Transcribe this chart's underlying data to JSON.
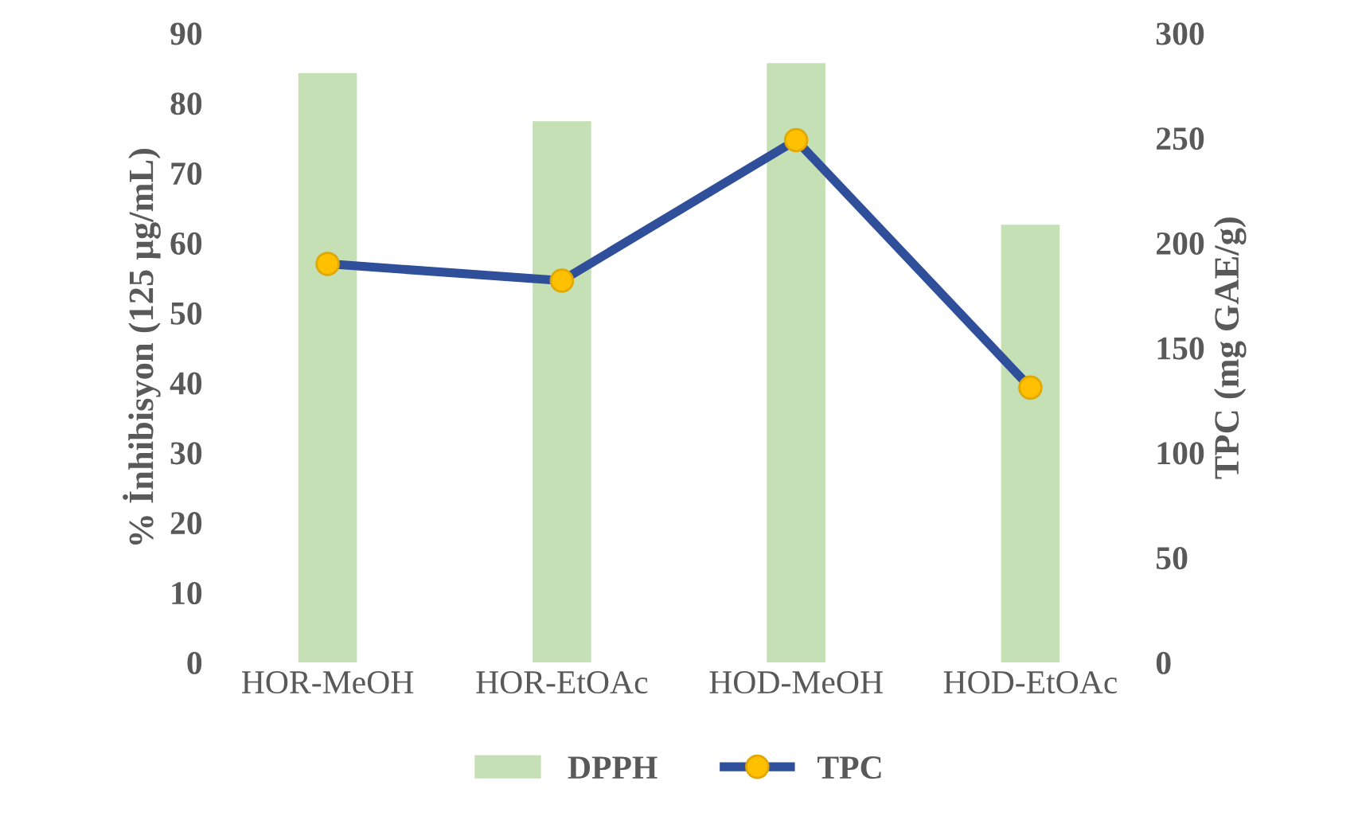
{
  "chart_data": {
    "type": "bar",
    "ylabel": "% İnhibisyon (125 µg/mL)",
    "y2label": "TPC (mg GAE/g)",
    "categories": [
      "HOR-MeOH",
      "HOR-EtOAc",
      "HOD-MeOH",
      "HOD-EtOAc"
    ],
    "series": [
      {
        "name": "DPPH",
        "color": "#c5e0b4",
        "values": [
          84.3,
          77.4,
          85.7,
          62.6
        ]
      },
      {
        "name": "TPC",
        "type": "line",
        "axis": "y2",
        "color": "#2f4f9a",
        "marker": "circle",
        "values": [
          190,
          182,
          249,
          131
        ]
      }
    ],
    "ylim": [
      0,
      90
    ],
    "yticks": [
      0,
      10,
      20,
      30,
      40,
      50,
      60,
      70,
      80,
      90
    ],
    "y2lim": [
      0,
      300
    ],
    "y2ticks": [
      0,
      50,
      100,
      150,
      200,
      250,
      300
    ],
    "grid": false,
    "legend": "bottom"
  }
}
